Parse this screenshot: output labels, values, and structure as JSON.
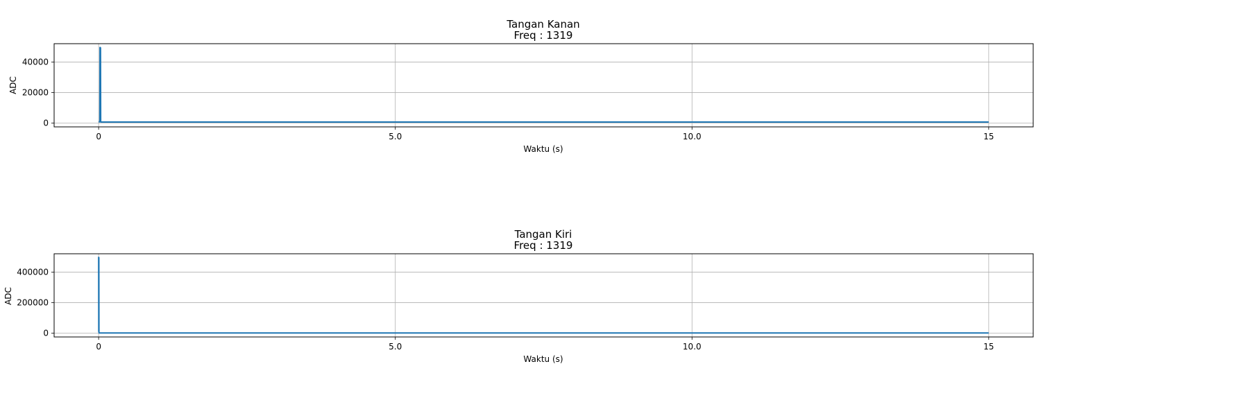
{
  "chart_data": [
    {
      "type": "line",
      "title": "Tangan Kanan",
      "subtitle": "Freq : 1319",
      "xlabel": "Waktu (s)",
      "ylabel": "ADC",
      "xticks": [
        "0",
        "5.0",
        "10.0",
        "15"
      ],
      "yticks": [
        "0",
        "20000",
        "40000"
      ],
      "xlim": [
        -0.75,
        15.75
      ],
      "ylim": [
        -2500,
        52000
      ],
      "grid": true,
      "color": "#1f77b4",
      "series": [
        {
          "x": [
            0.0,
            0.01,
            0.02,
            0.023,
            0.026,
            0.029,
            0.032,
            0.035,
            0.04,
            5.0,
            10.0,
            15.0
          ],
          "y": [
            800,
            800,
            800,
            49500,
            800,
            49500,
            49000,
            800,
            700,
            700,
            700,
            700
          ]
        }
      ]
    },
    {
      "type": "line",
      "title": "Tangan Kiri",
      "subtitle": "Freq :  1319",
      "xlabel": "Waktu (s)",
      "ylabel": "ADC",
      "xticks": [
        "0",
        "5.0",
        "10.0",
        "15"
      ],
      "yticks": [
        "0",
        "200000",
        "400000"
      ],
      "xlim": [
        -0.75,
        15.75
      ],
      "ylim": [
        -25000,
        520000
      ],
      "grid": true,
      "color": "#1f77b4",
      "series": [
        {
          "x": [
            0.0,
            0.002,
            0.004,
            0.006,
            0.008,
            0.012,
            5.0,
            10.0,
            15.0
          ],
          "y": [
            500000,
            10000,
            495000,
            5000,
            1000,
            900,
            900,
            900,
            900
          ]
        }
      ]
    }
  ]
}
